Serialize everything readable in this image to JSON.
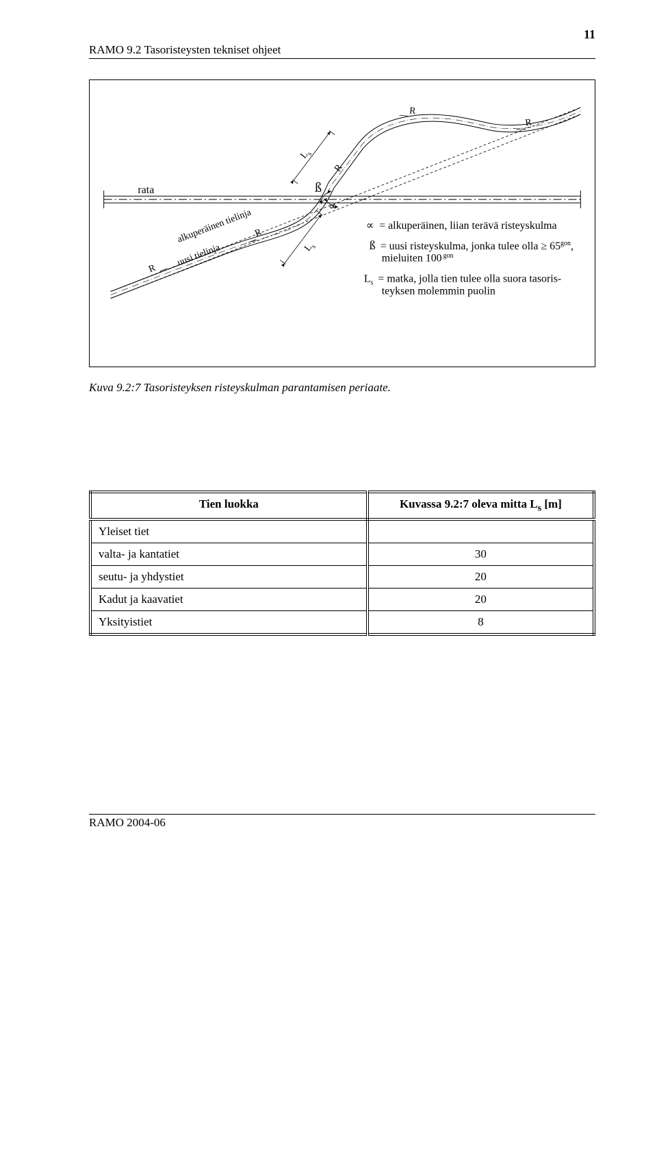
{
  "page_number": "11",
  "header": {
    "left": "RAMO 9.2 Tasoristeysten tekniset ohjeet",
    "right": ""
  },
  "figure": {
    "rail_label": "rata",
    "orig_road_label": "alkuperäinen tielinja",
    "new_road_label": "uusi tielinja",
    "R_label": "R",
    "Ls_label": "L",
    "Ls_sub": "s",
    "beta": "ß",
    "alpha": "∝",
    "legend_alpha": "= alkuperäinen, liian terävä risteyskulma",
    "legend_beta_line1": "= uusi risteyskulma, jonka tulee olla ≥ 65",
    "legend_beta_sup1": "gon",
    "legend_beta_comma": ",",
    "legend_beta_line2": "mieluiten 100",
    "legend_beta_sup2": "gon",
    "legend_Ls": "= matka, jolla tien tulee olla suora tasoris-",
    "legend_Ls2": "teyksen molemmin puolin"
  },
  "caption": "Kuva 9.2:7 Tasoristeyksen risteyskulman parantamisen periaate.",
  "table": {
    "head1": "Tien luokka",
    "head2": "Kuvassa 9.2:7 oleva mitta L",
    "head2_sub": "s",
    "head2_unit": " [m]",
    "rows": [
      {
        "c1": "Yleiset tiet",
        "c2": ""
      },
      {
        "c1": "valta- ja kantatiet",
        "c2": "30",
        "indent": true
      },
      {
        "c1": "seutu- ja yhdystiet",
        "c2": "20",
        "indent": true
      },
      {
        "c1": "Kadut ja kaavatiet",
        "c2": "20"
      },
      {
        "c1": "Yksityistiet",
        "c2": "8"
      }
    ]
  },
  "footer": "RAMO 2004-06"
}
